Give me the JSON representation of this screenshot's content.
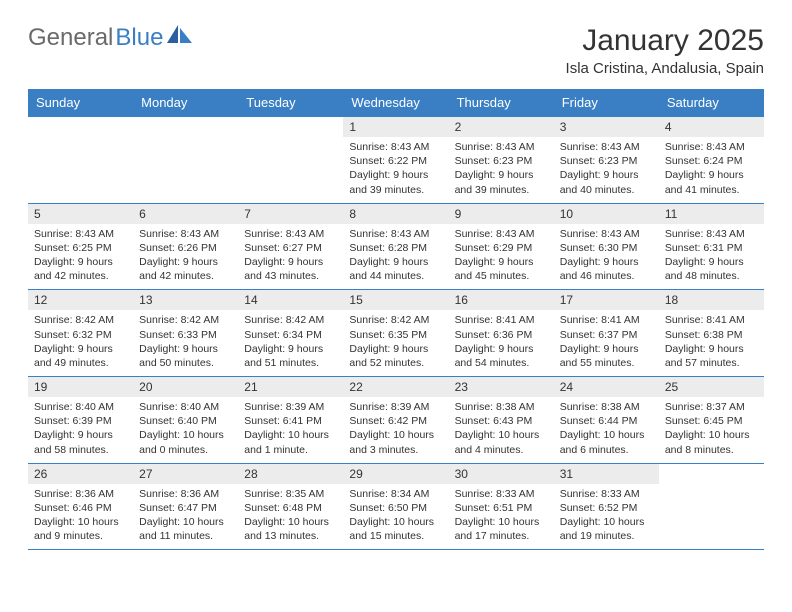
{
  "brand": {
    "part1": "General",
    "part2": "Blue"
  },
  "title": "January 2025",
  "location": "Isla Cristina, Andalusia, Spain",
  "colors": {
    "header_bg": "#3a7fc4",
    "header_text": "#ffffff",
    "daynum_bg": "#ececec",
    "text": "#333333",
    "rule": "#3a7fc4",
    "page_bg": "#ffffff"
  },
  "day_names": [
    "Sunday",
    "Monday",
    "Tuesday",
    "Wednesday",
    "Thursday",
    "Friday",
    "Saturday"
  ],
  "weeks": [
    [
      {
        "blank": true
      },
      {
        "blank": true
      },
      {
        "blank": true
      },
      {
        "n": "1",
        "sr": "Sunrise: 8:43 AM",
        "ss": "Sunset: 6:22 PM",
        "dl": "Daylight: 9 hours and 39 minutes."
      },
      {
        "n": "2",
        "sr": "Sunrise: 8:43 AM",
        "ss": "Sunset: 6:23 PM",
        "dl": "Daylight: 9 hours and 39 minutes."
      },
      {
        "n": "3",
        "sr": "Sunrise: 8:43 AM",
        "ss": "Sunset: 6:23 PM",
        "dl": "Daylight: 9 hours and 40 minutes."
      },
      {
        "n": "4",
        "sr": "Sunrise: 8:43 AM",
        "ss": "Sunset: 6:24 PM",
        "dl": "Daylight: 9 hours and 41 minutes."
      }
    ],
    [
      {
        "n": "5",
        "sr": "Sunrise: 8:43 AM",
        "ss": "Sunset: 6:25 PM",
        "dl": "Daylight: 9 hours and 42 minutes."
      },
      {
        "n": "6",
        "sr": "Sunrise: 8:43 AM",
        "ss": "Sunset: 6:26 PM",
        "dl": "Daylight: 9 hours and 42 minutes."
      },
      {
        "n": "7",
        "sr": "Sunrise: 8:43 AM",
        "ss": "Sunset: 6:27 PM",
        "dl": "Daylight: 9 hours and 43 minutes."
      },
      {
        "n": "8",
        "sr": "Sunrise: 8:43 AM",
        "ss": "Sunset: 6:28 PM",
        "dl": "Daylight: 9 hours and 44 minutes."
      },
      {
        "n": "9",
        "sr": "Sunrise: 8:43 AM",
        "ss": "Sunset: 6:29 PM",
        "dl": "Daylight: 9 hours and 45 minutes."
      },
      {
        "n": "10",
        "sr": "Sunrise: 8:43 AM",
        "ss": "Sunset: 6:30 PM",
        "dl": "Daylight: 9 hours and 46 minutes."
      },
      {
        "n": "11",
        "sr": "Sunrise: 8:43 AM",
        "ss": "Sunset: 6:31 PM",
        "dl": "Daylight: 9 hours and 48 minutes."
      }
    ],
    [
      {
        "n": "12",
        "sr": "Sunrise: 8:42 AM",
        "ss": "Sunset: 6:32 PM",
        "dl": "Daylight: 9 hours and 49 minutes."
      },
      {
        "n": "13",
        "sr": "Sunrise: 8:42 AM",
        "ss": "Sunset: 6:33 PM",
        "dl": "Daylight: 9 hours and 50 minutes."
      },
      {
        "n": "14",
        "sr": "Sunrise: 8:42 AM",
        "ss": "Sunset: 6:34 PM",
        "dl": "Daylight: 9 hours and 51 minutes."
      },
      {
        "n": "15",
        "sr": "Sunrise: 8:42 AM",
        "ss": "Sunset: 6:35 PM",
        "dl": "Daylight: 9 hours and 52 minutes."
      },
      {
        "n": "16",
        "sr": "Sunrise: 8:41 AM",
        "ss": "Sunset: 6:36 PM",
        "dl": "Daylight: 9 hours and 54 minutes."
      },
      {
        "n": "17",
        "sr": "Sunrise: 8:41 AM",
        "ss": "Sunset: 6:37 PM",
        "dl": "Daylight: 9 hours and 55 minutes."
      },
      {
        "n": "18",
        "sr": "Sunrise: 8:41 AM",
        "ss": "Sunset: 6:38 PM",
        "dl": "Daylight: 9 hours and 57 minutes."
      }
    ],
    [
      {
        "n": "19",
        "sr": "Sunrise: 8:40 AM",
        "ss": "Sunset: 6:39 PM",
        "dl": "Daylight: 9 hours and 58 minutes."
      },
      {
        "n": "20",
        "sr": "Sunrise: 8:40 AM",
        "ss": "Sunset: 6:40 PM",
        "dl": "Daylight: 10 hours and 0 minutes."
      },
      {
        "n": "21",
        "sr": "Sunrise: 8:39 AM",
        "ss": "Sunset: 6:41 PM",
        "dl": "Daylight: 10 hours and 1 minute."
      },
      {
        "n": "22",
        "sr": "Sunrise: 8:39 AM",
        "ss": "Sunset: 6:42 PM",
        "dl": "Daylight: 10 hours and 3 minutes."
      },
      {
        "n": "23",
        "sr": "Sunrise: 8:38 AM",
        "ss": "Sunset: 6:43 PM",
        "dl": "Daylight: 10 hours and 4 minutes."
      },
      {
        "n": "24",
        "sr": "Sunrise: 8:38 AM",
        "ss": "Sunset: 6:44 PM",
        "dl": "Daylight: 10 hours and 6 minutes."
      },
      {
        "n": "25",
        "sr": "Sunrise: 8:37 AM",
        "ss": "Sunset: 6:45 PM",
        "dl": "Daylight: 10 hours and 8 minutes."
      }
    ],
    [
      {
        "n": "26",
        "sr": "Sunrise: 8:36 AM",
        "ss": "Sunset: 6:46 PM",
        "dl": "Daylight: 10 hours and 9 minutes."
      },
      {
        "n": "27",
        "sr": "Sunrise: 8:36 AM",
        "ss": "Sunset: 6:47 PM",
        "dl": "Daylight: 10 hours and 11 minutes."
      },
      {
        "n": "28",
        "sr": "Sunrise: 8:35 AM",
        "ss": "Sunset: 6:48 PM",
        "dl": "Daylight: 10 hours and 13 minutes."
      },
      {
        "n": "29",
        "sr": "Sunrise: 8:34 AM",
        "ss": "Sunset: 6:50 PM",
        "dl": "Daylight: 10 hours and 15 minutes."
      },
      {
        "n": "30",
        "sr": "Sunrise: 8:33 AM",
        "ss": "Sunset: 6:51 PM",
        "dl": "Daylight: 10 hours and 17 minutes."
      },
      {
        "n": "31",
        "sr": "Sunrise: 8:33 AM",
        "ss": "Sunset: 6:52 PM",
        "dl": "Daylight: 10 hours and 19 minutes."
      },
      {
        "blank": true
      }
    ]
  ]
}
